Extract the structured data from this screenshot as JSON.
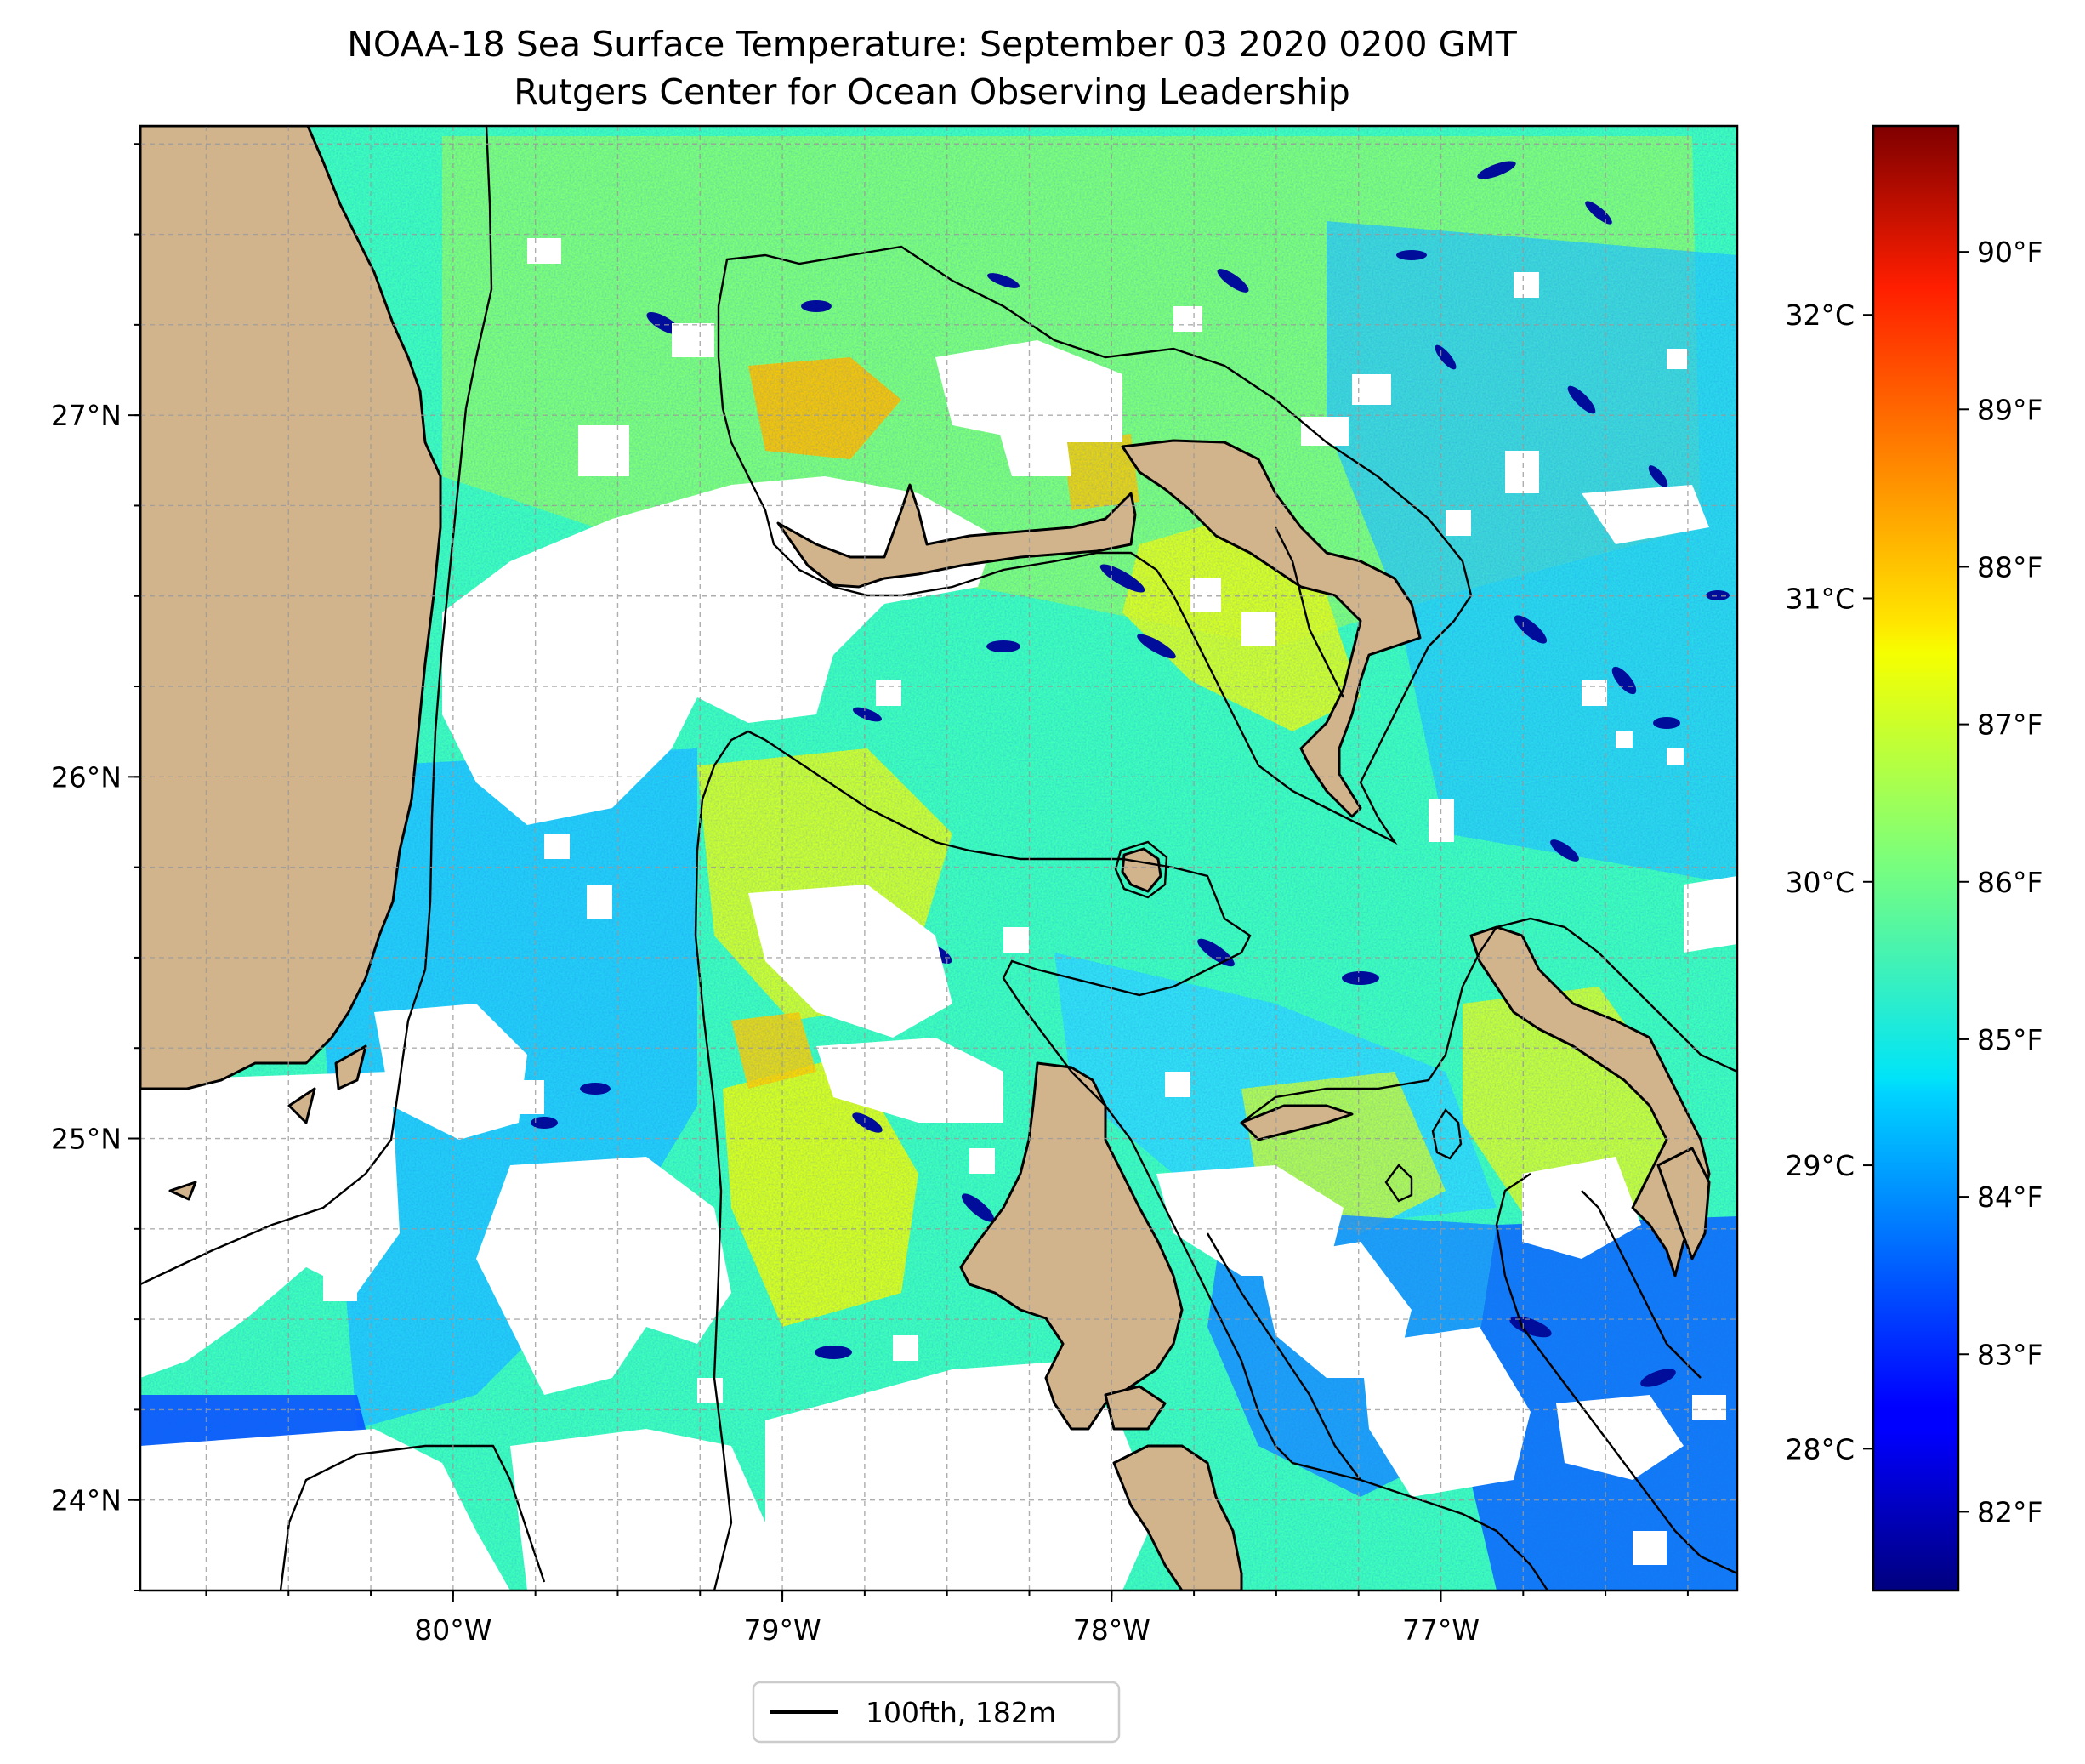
{
  "header": {
    "title": "NOAA-18 Sea Surface Temperature: September 03 2020 0200 GMT",
    "subtitle": "Rutgers Center for Ocean Observing Leadership"
  },
  "map": {
    "projection": "plate-carree",
    "extent": {
      "lon_min": -80.95,
      "lon_max": -76.1,
      "lat_min": 23.75,
      "lat_max": 27.8
    },
    "gridlines": true,
    "land_color": "#d2b48c",
    "no_data_color": "#ffffff",
    "colormap": "jet",
    "lon_ticks": [
      {
        "value": -80,
        "label": "80°W"
      },
      {
        "value": -79,
        "label": "79°W"
      },
      {
        "value": -78,
        "label": "78°W"
      },
      {
        "value": -77,
        "label": "77°W"
      }
    ],
    "lat_ticks": [
      {
        "value": 24,
        "label": "24°N"
      },
      {
        "value": 25,
        "label": "25°N"
      },
      {
        "value": 26,
        "label": "26°N"
      },
      {
        "value": 27,
        "label": "27°N"
      }
    ]
  },
  "colorbar": {
    "range_f": [
      81.5,
      90.8
    ],
    "fahrenheit_ticks": [
      {
        "value": 82,
        "label": "82°F"
      },
      {
        "value": 83,
        "label": "83°F"
      },
      {
        "value": 84,
        "label": "84°F"
      },
      {
        "value": 85,
        "label": "85°F"
      },
      {
        "value": 86,
        "label": "86°F"
      },
      {
        "value": 87,
        "label": "87°F"
      },
      {
        "value": 88,
        "label": "88°F"
      },
      {
        "value": 89,
        "label": "89°F"
      },
      {
        "value": 90,
        "label": "90°F"
      }
    ],
    "celsius_ticks": [
      {
        "value": 28,
        "label": "28°C"
      },
      {
        "value": 29,
        "label": "29°C"
      },
      {
        "value": 30,
        "label": "30°C"
      },
      {
        "value": 31,
        "label": "31°C"
      },
      {
        "value": 32,
        "label": "32°C"
      }
    ]
  },
  "legend": {
    "placement": "bottom-center",
    "entries": [
      {
        "label": "100fth, 182m",
        "color": "#000000"
      }
    ]
  }
}
